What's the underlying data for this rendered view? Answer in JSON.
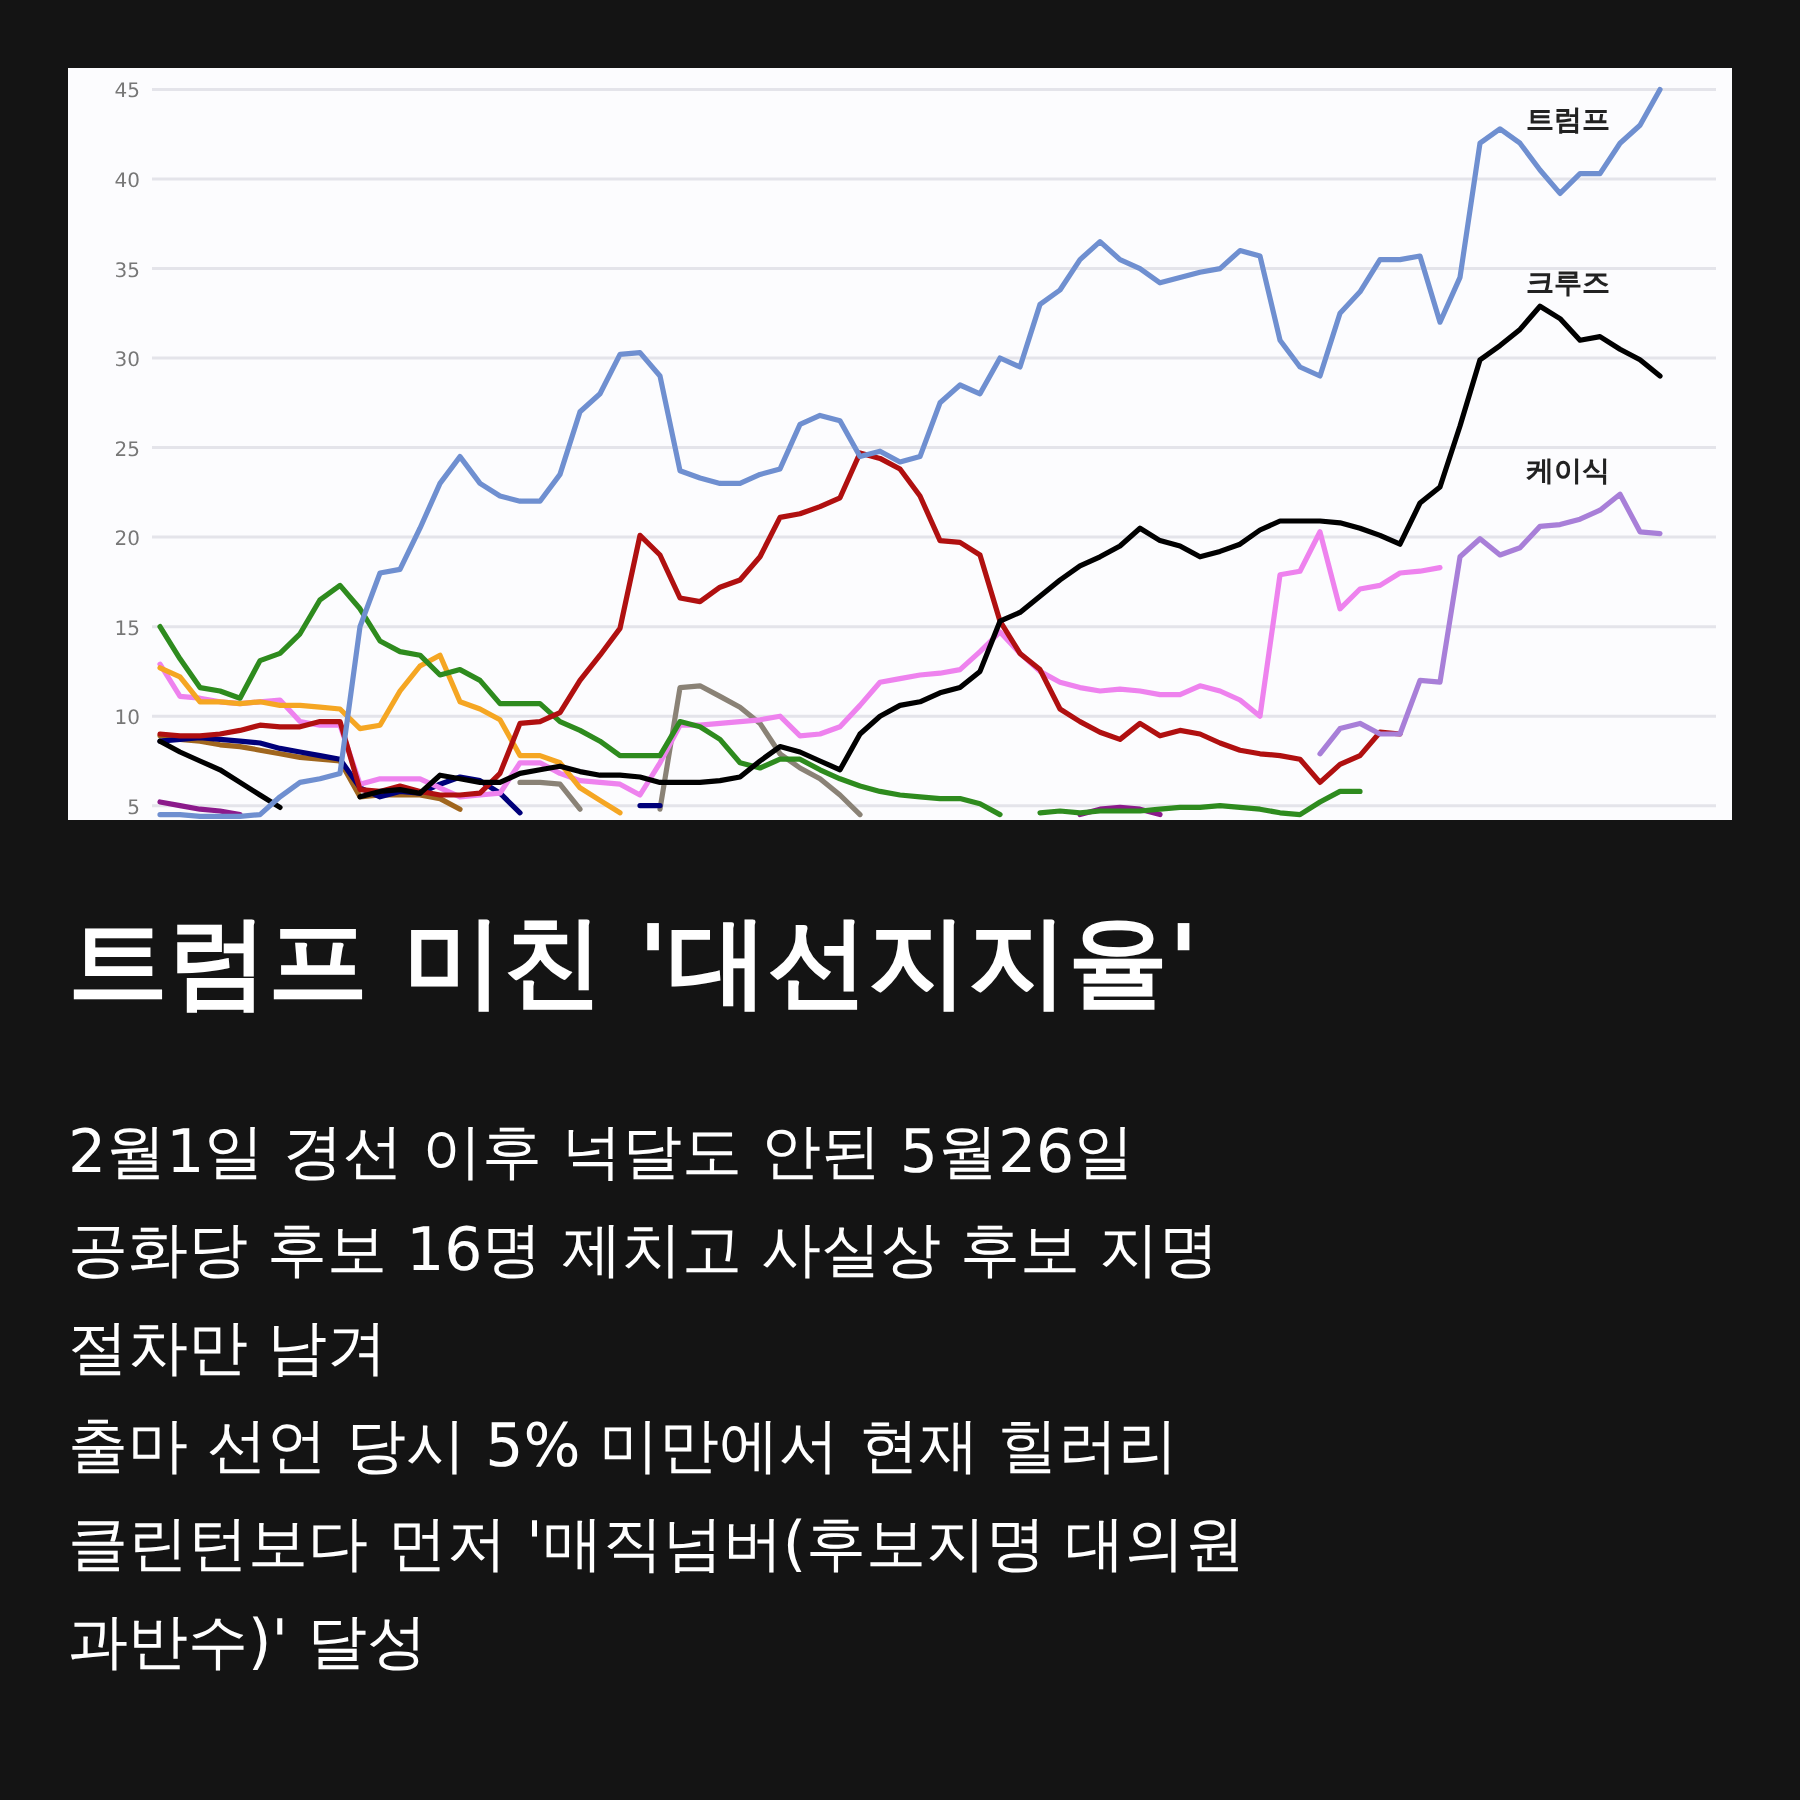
{
  "chart_data": {
    "type": "line",
    "title": "트럼프 미친 '대선지지율'",
    "annotations": [
      "2월1일 경선 이후 넉달도 안된 5월26일",
      "공화당 후보 16명 제치고 사실상 후보 지명",
      "절차만 남겨",
      "출마 선언 당시 5% 미만에서 현재 힐러리",
      "클린턴보다 먼저 '매직넘버(후보지명 대의원",
      "과반수)' 달성"
    ],
    "categories": [
      null,
      null,
      null,
      null,
      null,
      null,
      null,
      null,
      null,
      null,
      null,
      null,
      null,
      null,
      null,
      null,
      null,
      null,
      null,
      null,
      null,
      null,
      null,
      null,
      null,
      null,
      null,
      null,
      null,
      null,
      null,
      null,
      null,
      null,
      null,
      null,
      null,
      null,
      null,
      null,
      null,
      null,
      null,
      null,
      null,
      null,
      null,
      null,
      null,
      null,
      null,
      null,
      null,
      null,
      null,
      null,
      null,
      null,
      null,
      null,
      null,
      null,
      null,
      null,
      null,
      null,
      null,
      null,
      null,
      null,
      null,
      null,
      null,
      null,
      null,
      null
    ],
    "ylim": [
      4.2,
      46.2
    ],
    "yticks": [
      5,
      10,
      15,
      20,
      25,
      30,
      35,
      40,
      45
    ],
    "grid": "y",
    "marker": "none",
    "line_style": "solid",
    "series": [
      {
        "name": "트럼프",
        "color": "#6f8fd0",
        "values": [
          4.5,
          4.5,
          4.4,
          4.4,
          4.4,
          4.5,
          5.5,
          6.3,
          6.5,
          6.8,
          15,
          18,
          18.2,
          20.5,
          23,
          24.5,
          23,
          22.3,
          22,
          22,
          23.5,
          27,
          28,
          30.2,
          30.3,
          29,
          23.7,
          23.3,
          23,
          23,
          23.5,
          23.8,
          26.3,
          26.8,
          26.5,
          24.5,
          24.8,
          24.2,
          24.5,
          27.5,
          28.5,
          28,
          30,
          29.5,
          33,
          33.8,
          35.5,
          36.5,
          35.5,
          35,
          34.2,
          34.5,
          34.8,
          35,
          36,
          35.7,
          31,
          29.5,
          29,
          32.5,
          33.7,
          35.5,
          35.5,
          35.7,
          32,
          34.5,
          42,
          42.8,
          42,
          40.5,
          39.2,
          40.3,
          40.3,
          42,
          43,
          45
        ]
      },
      {
        "name": "크루즈",
        "color": "#000000",
        "values": [
          8.6,
          8,
          7.5,
          7,
          6.3,
          5.6,
          4.9,
          null,
          null,
          null,
          5.5,
          5.8,
          5.9,
          5.7,
          6.7,
          6.5,
          6.3,
          6.3,
          6.8,
          7,
          7.2,
          6.9,
          6.7,
          6.7,
          6.6,
          6.3,
          6.3,
          6.3,
          6.4,
          6.6,
          7.5,
          8.3,
          8,
          7.5,
          7,
          9,
          10,
          10.6,
          10.8,
          11.3,
          11.6,
          12.5,
          15.3,
          15.8,
          16.7,
          17.6,
          18.4,
          18.9,
          19.5,
          20.5,
          19.8,
          19.5,
          18.9,
          19.2,
          19.6,
          20.4,
          20.9,
          20.9,
          20.9,
          20.8,
          20.5,
          20.1,
          19.6,
          21.9,
          22.8,
          26.2,
          29.9,
          30.7,
          31.6,
          32.9,
          32.2,
          31,
          31.2,
          30.5,
          29.9,
          29
        ]
      },
      {
        "name": "케이식",
        "color": "#a87fd8",
        "values": [
          null,
          null,
          null,
          null,
          null,
          null,
          null,
          null,
          null,
          null,
          null,
          null,
          null,
          null,
          null,
          null,
          null,
          null,
          null,
          null,
          null,
          null,
          null,
          null,
          null,
          null,
          null,
          null,
          null,
          null,
          null,
          null,
          null,
          null,
          null,
          null,
          null,
          null,
          null,
          null,
          null,
          null,
          null,
          null,
          null,
          null,
          null,
          null,
          null,
          null,
          null,
          null,
          null,
          null,
          null,
          null,
          null,
          null,
          7.9,
          9.3,
          9.6,
          9,
          9,
          12,
          11.9,
          18.9,
          19.9,
          19,
          19.4,
          20.6,
          20.7,
          21,
          21.5,
          22.4,
          20.3,
          20.2
        ]
      },
      {
        "color": "#b01010",
        "values": [
          9,
          8.9,
          8.9,
          9,
          9.2,
          9.5,
          9.4,
          9.4,
          9.7,
          9.7,
          5.9,
          5.8,
          6.1,
          5.8,
          5.6,
          5.6,
          5.7,
          6.8,
          9.6,
          9.7,
          10.2,
          12,
          13.4,
          14.9,
          20.1,
          19,
          16.6,
          16.4,
          17.2,
          17.6,
          18.9,
          21.1,
          21.3,
          21.7,
          22.2,
          24.7,
          24.4,
          23.8,
          22.3,
          19.8,
          19.7,
          19,
          15.3,
          13.5,
          12.6,
          10.4,
          9.7,
          9.1,
          8.7,
          9.6,
          8.9,
          9.2,
          9,
          8.5,
          8.1,
          7.9,
          7.8,
          7.6,
          6.3,
          7.3,
          7.8,
          9.1,
          9,
          null,
          null,
          null,
          null,
          null,
          null,
          null,
          null,
          null,
          null,
          null,
          null,
          null
        ]
      },
      {
        "color": "#2e8b1e",
        "values": [
          15,
          13.2,
          11.6,
          11.4,
          11,
          13.1,
          13.5,
          14.6,
          16.5,
          17.3,
          16,
          14.2,
          13.6,
          13.4,
          12.3,
          12.6,
          12,
          10.7,
          10.7,
          10.7,
          9.7,
          9.2,
          8.6,
          7.8,
          7.8,
          7.8,
          9.7,
          9.4,
          8.7,
          7.4,
          7.1,
          7.6,
          7.6,
          7,
          6.5,
          6.1,
          5.8,
          5.6,
          5.5,
          5.4,
          5.4,
          5.1,
          4.5,
          null,
          4.6,
          4.7,
          4.6,
          4.7,
          4.7,
          4.7,
          4.8,
          4.9,
          4.9,
          5,
          4.9,
          4.8,
          4.6,
          4.5,
          5.2,
          5.8,
          5.8,
          null,
          null,
          null,
          null,
          null,
          null,
          null,
          null,
          null,
          null,
          null,
          null,
          null,
          null,
          null
        ]
      },
      {
        "color": "#f5a623",
        "values": [
          12.7,
          12.2,
          10.8,
          10.8,
          10.7,
          10.8,
          10.6,
          10.6,
          10.5,
          10.4,
          9.3,
          9.5,
          11.4,
          12.8,
          13.4,
          10.8,
          10.4,
          9.8,
          7.8,
          7.8,
          7.4,
          6,
          5.3,
          4.6,
          null,
          null,
          null,
          null,
          null,
          null,
          null,
          null,
          null,
          null,
          null,
          null,
          null,
          null,
          null,
          null,
          null,
          null,
          null,
          null,
          null,
          null,
          null,
          null,
          null,
          null,
          null,
          null,
          null,
          null,
          null,
          null,
          null,
          null,
          null,
          null,
          null,
          null,
          null,
          null,
          null,
          null,
          null,
          null,
          null,
          null,
          null,
          null,
          null,
          null,
          null,
          null
        ]
      },
      {
        "color": "#ee82ee",
        "values": [
          12.9,
          11.1,
          11,
          10.8,
          10.7,
          10.8,
          10.9,
          9.7,
          9.5,
          9.5,
          6.2,
          6.5,
          6.5,
          6.5,
          6,
          5.5,
          5.6,
          5.7,
          7.4,
          7.4,
          6.8,
          6.4,
          6.3,
          6.2,
          5.6,
          7.4,
          9.5,
          9.5,
          9.6,
          9.7,
          9.8,
          10,
          8.9,
          9,
          9.4,
          10.6,
          11.9,
          12.1,
          12.3,
          12.4,
          12.6,
          13.6,
          14.7,
          13.5,
          12.5,
          11.9,
          11.6,
          11.4,
          11.5,
          11.4,
          11.2,
          11.2,
          11.7,
          11.4,
          10.9,
          10,
          17.9,
          18.1,
          20.3,
          16,
          17.1,
          17.3,
          18,
          18.1,
          18.3,
          null,
          null,
          null,
          null,
          null,
          null,
          null,
          null,
          null,
          null,
          null
        ]
      },
      {
        "color": "#00007a",
        "values": [
          8.6,
          8.7,
          8.8,
          8.7,
          8.6,
          8.5,
          8.2,
          8,
          7.8,
          7.6,
          6,
          5.5,
          5.8,
          5.7,
          6.2,
          6.6,
          6.4,
          5.7,
          4.6,
          null,
          null,
          null,
          null,
          null,
          5,
          5,
          null,
          null,
          null,
          null,
          null,
          null,
          null,
          null,
          null,
          null,
          null,
          null,
          null,
          null,
          null,
          null,
          null,
          null,
          null,
          null,
          null,
          null,
          null,
          null,
          null,
          null,
          null,
          null,
          null,
          null,
          null,
          null,
          null,
          null,
          null,
          null,
          null,
          null,
          null,
          null,
          null,
          null,
          null,
          null,
          null,
          null,
          null,
          null,
          null,
          null
        ]
      },
      {
        "color": "#8a8276",
        "values": [
          null,
          null,
          null,
          null,
          null,
          null,
          null,
          null,
          null,
          null,
          null,
          null,
          null,
          null,
          null,
          null,
          null,
          null,
          6.3,
          6.3,
          6.2,
          4.8,
          null,
          null,
          null,
          4.8,
          11.6,
          11.7,
          11.1,
          10.5,
          9.6,
          7.9,
          7.1,
          6.5,
          5.6,
          4.5,
          null,
          null,
          null,
          null,
          null,
          null,
          null,
          null,
          null,
          null,
          null,
          null,
          null,
          null,
          null,
          null,
          null,
          null,
          null,
          null,
          null,
          null,
          null,
          null,
          null,
          null,
          null,
          null,
          null,
          null,
          null,
          null,
          null,
          null,
          null,
          null,
          null,
          null,
          null,
          null
        ]
      },
      {
        "color": "#a0661e",
        "values": [
          8.9,
          8.7,
          8.6,
          8.4,
          8.3,
          8.1,
          7.9,
          7.7,
          7.6,
          7.5,
          5.5,
          5.6,
          5.6,
          5.6,
          5.4,
          4.8,
          null,
          null,
          null,
          null,
          null,
          null,
          null,
          null,
          null,
          null,
          null,
          null,
          null,
          null,
          null,
          null,
          null,
          null,
          null,
          null,
          null,
          null,
          null,
          null,
          null,
          null,
          null,
          null,
          null,
          null,
          null,
          null,
          null,
          null,
          null,
          null,
          null,
          null,
          null,
          null,
          null,
          null,
          null,
          null,
          null,
          null,
          null,
          null,
          null,
          null,
          null,
          null,
          null,
          null,
          null,
          null,
          null,
          null,
          null,
          null
        ]
      },
      {
        "color": "#8b1a8b",
        "values": [
          5.2,
          5,
          4.8,
          4.7,
          4.5,
          null,
          null,
          null,
          null,
          null,
          null,
          null,
          null,
          null,
          null,
          null,
          null,
          null,
          null,
          null,
          null,
          null,
          null,
          null,
          null,
          null,
          null,
          null,
          null,
          null,
          null,
          null,
          null,
          null,
          null,
          null,
          null,
          null,
          null,
          null,
          null,
          null,
          null,
          null,
          null,
          null,
          4.5,
          4.8,
          4.9,
          4.8,
          4.5,
          null,
          null,
          null,
          null,
          null,
          null,
          null,
          null,
          null,
          null,
          null,
          null,
          null,
          null,
          null,
          null,
          null,
          null,
          null,
          null,
          null,
          null,
          null,
          null,
          null
        ]
      }
    ]
  }
}
